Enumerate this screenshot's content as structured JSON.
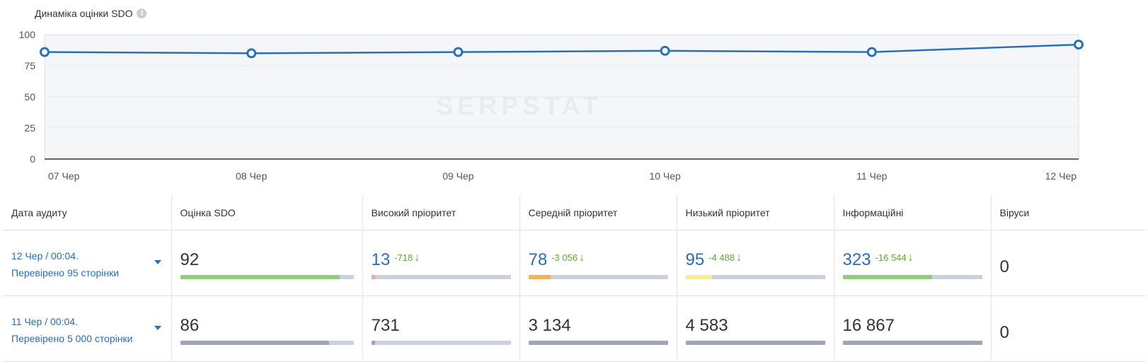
{
  "chart_title": "Динаміка оцінки SDO",
  "chart_data": {
    "type": "line",
    "title": "Динаміка оцінки SDO",
    "x": [
      "07 Чер",
      "08 Чер",
      "09 Чер",
      "10 Чер",
      "11 Чер",
      "12 Чер"
    ],
    "series": [
      {
        "values": [
          86,
          85,
          86,
          87,
          86,
          92
        ]
      }
    ],
    "ylim": [
      0,
      100
    ],
    "yticks": [
      0,
      25,
      50,
      75,
      100
    ],
    "grid": true,
    "line_color": "#2a70b8"
  },
  "table": {
    "headers": [
      "Дата аудиту",
      "Оцінка SDO",
      "Високий пріоритет",
      "Середній пріоритет",
      "Низький пріоритет",
      "Інформаційні",
      "Віруси"
    ],
    "rows": [
      {
        "date": "12 Чер / 00:04.",
        "checked": "Перевірено 95 сторінки",
        "sdo": "92",
        "sdo_fraction": 0.92,
        "sdo_color": "#95c97f",
        "high": "13",
        "high_delta": "-718",
        "high_fraction": 0.03,
        "high_color": "#f1a3ad",
        "medium": "78",
        "medium_delta": "-3 056",
        "medium_fraction": 0.16,
        "medium_color": "#eeb55a",
        "low": "95",
        "low_delta": "-4 488",
        "low_fraction": 0.19,
        "low_color": "#f6ec9a",
        "info": "323",
        "info_delta": "-16 544",
        "info_fraction": 0.64,
        "info_color": "#95c97f",
        "virus": "0"
      },
      {
        "date": "11 Чер / 00:04.",
        "checked": "Перевірено 5 000 сторінки",
        "sdo": "86",
        "sdo_fraction": 0.86,
        "sdo_color": "#a1a6b6",
        "high": "731",
        "high_fraction": 0.03,
        "high_color": "#a1a6b6",
        "medium": "3 134",
        "medium_fraction": 1.0,
        "medium_color": "#a1a6b6",
        "low": "4 583",
        "low_fraction": 1.0,
        "low_color": "#a1a6b6",
        "info": "16 867",
        "info_fraction": 1.0,
        "info_color": "#a1a6b6",
        "virus": "0"
      }
    ]
  }
}
